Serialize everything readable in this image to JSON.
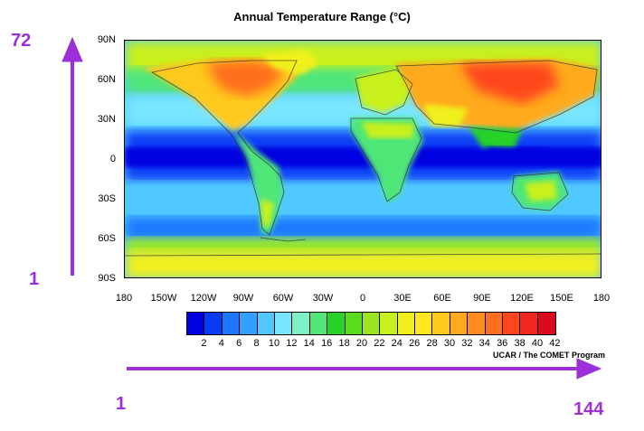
{
  "title": "Annual Temperature Range (°C)",
  "credit": "UCAR / The COMET Program",
  "lat_labels": [
    "90N",
    "60N",
    "30N",
    "0",
    "30S",
    "60S",
    "90S"
  ],
  "lon_labels": [
    "180",
    "150W",
    "120W",
    "90W",
    "60W",
    "30W",
    "0",
    "30E",
    "60E",
    "90E",
    "120E",
    "150E",
    "180"
  ],
  "colorbar": {
    "labels": [
      "2",
      "4",
      "6",
      "8",
      "10",
      "12",
      "14",
      "16",
      "18",
      "20",
      "22",
      "24",
      "26",
      "28",
      "30",
      "32",
      "34",
      "36",
      "38",
      "40",
      "42"
    ],
    "colors": [
      "#0000e0",
      "#0a3cf5",
      "#1e78ff",
      "#32a0ff",
      "#50c8ff",
      "#78e6ff",
      "#7ef0c8",
      "#50e678",
      "#28d228",
      "#5adc1e",
      "#9be61e",
      "#c8f01e",
      "#f0f01e",
      "#ffe61e",
      "#ffc81e",
      "#ffaa1e",
      "#ff8c1e",
      "#ff6e1e",
      "#ff461e",
      "#f0281e",
      "#dc0a1e"
    ]
  },
  "annotations": {
    "y_top": "72",
    "y_bottom": "1",
    "x_left": "1",
    "x_right": "144"
  },
  "annotation_color": "#9b30d9"
}
